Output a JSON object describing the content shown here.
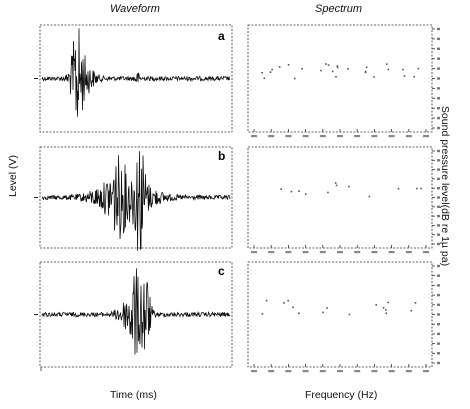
{
  "headers": {
    "left": "Waveform",
    "right": "Spectrum"
  },
  "axis_labels": {
    "waveform_y": "Level (V)",
    "waveform_x": "Time (ms)",
    "spectrum_x": "Frequency (Hz)",
    "spectrum_y": "Sound pressure level(dB re 1µ pa)"
  },
  "panels": [
    {
      "letter": "a"
    },
    {
      "letter": "b"
    },
    {
      "letter": "c"
    }
  ],
  "chart_data": [
    {
      "type": "line",
      "title": "",
      "xlabel": "Time (ms)",
      "ylabel": "Level (V)",
      "series": []
    },
    {
      "type": "line",
      "title": "",
      "xlabel": "Time (ms)",
      "ylabel": "Level (V)",
      "series": []
    },
    {
      "type": "line",
      "title": "",
      "xlabel": "Time (ms)",
      "ylabel": "Level (V)",
      "series": []
    },
    {
      "type": "scatter",
      "title": "",
      "xlabel": "Frequency (Hz)",
      "ylabel": "Sound pressure level(dB re 1µ pa)",
      "series": []
    },
    {
      "type": "scatter",
      "title": "",
      "xlabel": "Frequency (Hz)",
      "ylabel": "Sound pressure level(dB re 1µ pa)",
      "series": []
    },
    {
      "type": "scatter",
      "title": "",
      "xlabel": "Frequency (Hz)",
      "ylabel": "Sound pressure level(dB re 1µ pa)",
      "series": []
    }
  ]
}
